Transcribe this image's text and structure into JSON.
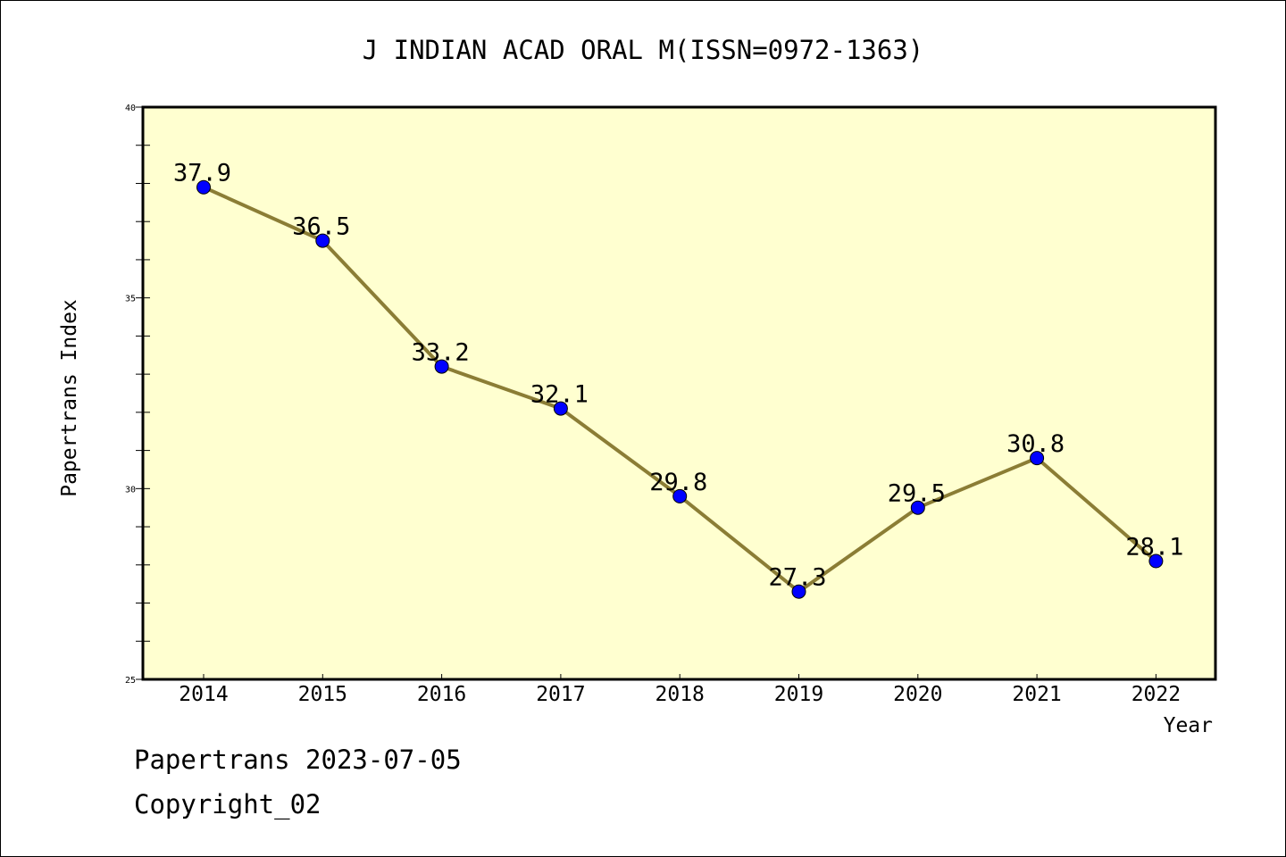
{
  "chart_data": {
    "type": "line",
    "title": "J INDIAN ACAD ORAL M(ISSN=0972-1363)",
    "xlabel": "Year",
    "ylabel": "Papertrans Index",
    "categories": [
      "2014",
      "2015",
      "2016",
      "2017",
      "2018",
      "2019",
      "2020",
      "2021",
      "2022"
    ],
    "values": [
      37.9,
      36.5,
      33.2,
      32.1,
      29.8,
      27.3,
      29.5,
      30.8,
      28.1
    ],
    "data_labels": [
      "37.9",
      "36.5",
      "33.2",
      "32.1",
      "29.8",
      "27.3",
      "29.5",
      "30.8",
      "28.1"
    ],
    "ylim": [
      25,
      40
    ],
    "yticks": [
      "25",
      "30",
      "35",
      "40"
    ],
    "grid": false,
    "legend": "none",
    "colors": {
      "plot_background": "#ffffd0",
      "line": "#8b7d35",
      "marker": "#0000ff"
    }
  },
  "footer": {
    "line1": "Papertrans 2023-07-05",
    "line2": "Copyright_02"
  }
}
